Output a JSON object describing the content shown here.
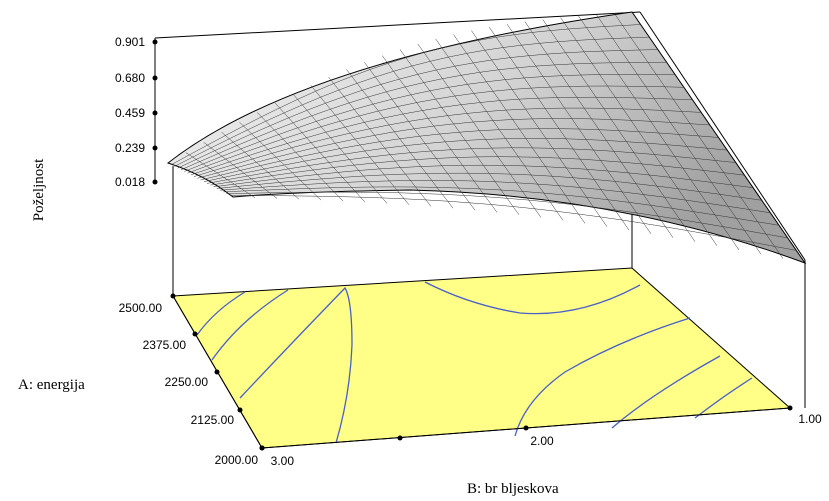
{
  "chart_data": {
    "type": "surface",
    "zlabel": "Poželjnost",
    "xlabel": "A: energija",
    "ylabel": "B: br bljeskova",
    "z_ticks": [
      "0.901",
      "0.680",
      "0.459",
      "0.239",
      "0.018"
    ],
    "a_ticks": [
      "2500.00",
      "2375.00",
      "2250.00",
      "2125.00",
      "2000.00"
    ],
    "b_ticks": [
      "3.00",
      "2.00",
      "1.00"
    ],
    "z_range": [
      0.018,
      0.901
    ],
    "a_range": [
      2000,
      2500
    ],
    "b_range": [
      1,
      3
    ],
    "corner_values": [
      {
        "a": 2500,
        "b": 3.0,
        "z": 0.239
      },
      {
        "a": 2500,
        "b": 1.0,
        "z": 0.901
      },
      {
        "a": 2000,
        "b": 1.0,
        "z": 0.018
      },
      {
        "a": 2000,
        "b": 3.0,
        "z": 0.1
      }
    ],
    "surface_color": "#cfcfcf",
    "floor_color": "#ffff88",
    "contour_color": "#4a5fc8"
  }
}
